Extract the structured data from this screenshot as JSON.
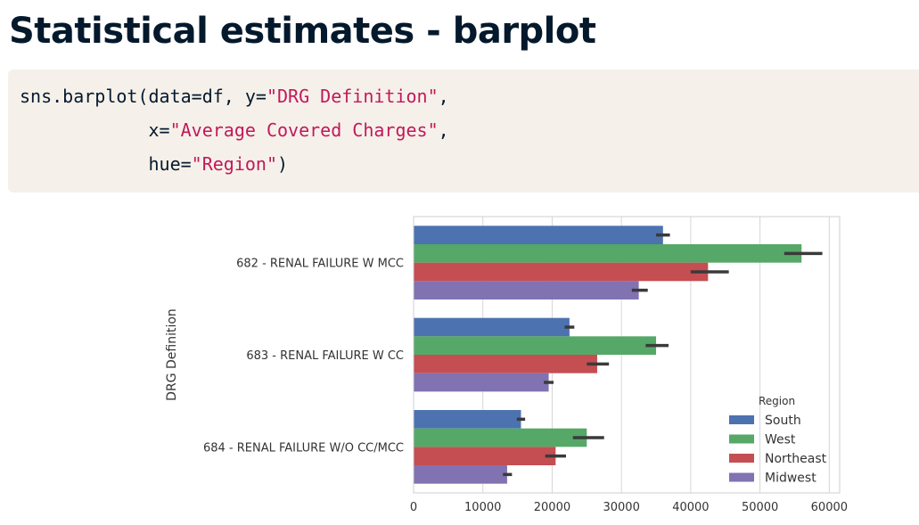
{
  "slide": {
    "title": "Statistical estimates - barplot"
  },
  "code": {
    "lines": [
      [
        {
          "t": "sns.barplot(data=df, y=",
          "s": false
        },
        {
          "t": "\"DRG Definition\"",
          "s": true
        },
        {
          "t": ",",
          "s": false
        }
      ],
      [
        {
          "t": "            x=",
          "s": false
        },
        {
          "t": "\"Average Covered Charges\"",
          "s": true
        },
        {
          "t": ",",
          "s": false
        }
      ],
      [
        {
          "t": "            hue=",
          "s": false
        },
        {
          "t": "\"Region\"",
          "s": true
        },
        {
          "t": ")",
          "s": false
        }
      ]
    ]
  },
  "chart_data": {
    "type": "bar",
    "orientation": "horizontal",
    "categories": [
      "682 - RENAL FAILURE W MCC",
      "683 - RENAL FAILURE W CC",
      "684 - RENAL FAILURE W/O CC/MCC"
    ],
    "series": [
      {
        "name": "South",
        "color": "#4c72b0",
        "values": [
          36000,
          22500,
          15500
        ],
        "ci": [
          [
            35000,
            37000
          ],
          [
            21800,
            23200
          ],
          [
            14900,
            16100
          ]
        ]
      },
      {
        "name": "West",
        "color": "#55a868",
        "values": [
          56000,
          35000,
          25000
        ],
        "ci": [
          [
            53500,
            59000
          ],
          [
            33500,
            36800
          ],
          [
            23000,
            27500
          ]
        ]
      },
      {
        "name": "Northeast",
        "color": "#c44e52",
        "values": [
          42500,
          26500,
          20500
        ],
        "ci": [
          [
            40000,
            45500
          ],
          [
            25000,
            28200
          ],
          [
            19000,
            22000
          ]
        ]
      },
      {
        "name": "Midwest",
        "color": "#8172b2",
        "values": [
          32500,
          19500,
          13500
        ],
        "ci": [
          [
            31500,
            33800
          ],
          [
            18800,
            20200
          ],
          [
            12900,
            14200
          ]
        ]
      }
    ],
    "xlabel": "",
    "ylabel": "DRG Definition",
    "xlim": [
      0,
      61500
    ],
    "xticks": [
      0,
      10000,
      20000,
      30000,
      40000,
      50000,
      60000
    ],
    "grid": "vertical",
    "legend": {
      "title": "Region",
      "placement": "lower-right"
    },
    "errorbar_color": "#3a3a3a"
  }
}
